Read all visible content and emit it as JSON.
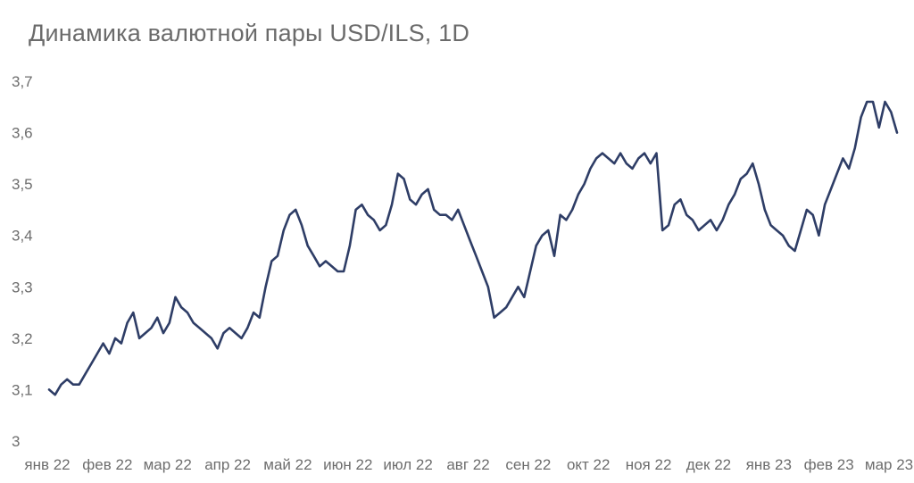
{
  "chart_data": {
    "type": "line",
    "title": "Динамика валютной пары USD/ILS, 1D",
    "xlabel": "",
    "ylabel": "",
    "ylim": [
      3.0,
      3.7
    ],
    "yticks": [
      "3",
      "3,1",
      "3,2",
      "3,3",
      "3,4",
      "3,5",
      "3,6",
      "3,7"
    ],
    "grid": false,
    "xticks": [
      "янв 22",
      "фев 22",
      "мар 22",
      "апр 22",
      "май 22",
      "июн 22",
      "июл 22",
      "авг 22",
      "сен 22",
      "окт 22",
      "ноя 22",
      "дек 22",
      "янв 23",
      "фев 23",
      "мар 23"
    ],
    "line_color": "#2e3d66",
    "series": [
      {
        "x": [
          0.0,
          0.1,
          0.2,
          0.3,
          0.4,
          0.5,
          0.6,
          0.7,
          0.8,
          0.9,
          1.0,
          1.1,
          1.2,
          1.3,
          1.4,
          1.5,
          1.6,
          1.7,
          1.8,
          1.9,
          2.0,
          2.1,
          2.2,
          2.3,
          2.4,
          2.5,
          2.6,
          2.7,
          2.8,
          2.9,
          3.0,
          3.1,
          3.2,
          3.3,
          3.4,
          3.5,
          3.6,
          3.7,
          3.8,
          3.9,
          4.0,
          4.1,
          4.2,
          4.3,
          4.4,
          4.5,
          4.6,
          4.7,
          4.8,
          4.9,
          5.0,
          5.1,
          5.2,
          5.3,
          5.4,
          5.5,
          5.6,
          5.7,
          5.8,
          5.9,
          6.0,
          6.1,
          6.2,
          6.3,
          6.4,
          6.5,
          6.6,
          6.7,
          6.8,
          6.9,
          7.0,
          7.1,
          7.2,
          7.3,
          7.4,
          7.5,
          7.6,
          7.7,
          7.8,
          7.9,
          8.0,
          8.1,
          8.2,
          8.3,
          8.4,
          8.5,
          8.6,
          8.7,
          8.8,
          8.9,
          9.0,
          9.1,
          9.2,
          9.3,
          9.4,
          9.5,
          9.6,
          9.7,
          9.8,
          9.9,
          10.0,
          10.1,
          10.2,
          10.3,
          10.4,
          10.5,
          10.6,
          10.7,
          10.8,
          10.9,
          11.0,
          11.1,
          11.2,
          11.3,
          11.4,
          11.5,
          11.6,
          11.7,
          11.8,
          11.9,
          12.0,
          12.1,
          12.2,
          12.3,
          12.4,
          12.5,
          12.6,
          12.7,
          12.8,
          12.9,
          13.0,
          13.1,
          13.2,
          13.3,
          13.4,
          13.5,
          13.6,
          13.7,
          13.8,
          13.9,
          14.0,
          14.1
        ],
        "values": [
          3.1,
          3.09,
          3.11,
          3.12,
          3.11,
          3.11,
          3.13,
          3.15,
          3.17,
          3.19,
          3.17,
          3.2,
          3.19,
          3.23,
          3.25,
          3.2,
          3.21,
          3.22,
          3.24,
          3.21,
          3.23,
          3.28,
          3.26,
          3.25,
          3.23,
          3.22,
          3.21,
          3.2,
          3.18,
          3.21,
          3.22,
          3.21,
          3.2,
          3.22,
          3.25,
          3.24,
          3.3,
          3.35,
          3.36,
          3.41,
          3.44,
          3.45,
          3.42,
          3.38,
          3.36,
          3.34,
          3.35,
          3.34,
          3.33,
          3.33,
          3.38,
          3.45,
          3.46,
          3.44,
          3.43,
          3.41,
          3.42,
          3.46,
          3.52,
          3.51,
          3.47,
          3.46,
          3.48,
          3.49,
          3.45,
          3.44,
          3.44,
          3.43,
          3.45,
          3.42,
          3.39,
          3.36,
          3.33,
          3.3,
          3.24,
          3.25,
          3.26,
          3.28,
          3.3,
          3.28,
          3.33,
          3.38,
          3.4,
          3.41,
          3.36,
          3.44,
          3.43,
          3.45,
          3.48,
          3.5,
          3.53,
          3.55,
          3.56,
          3.55,
          3.54,
          3.56,
          3.54,
          3.53,
          3.55,
          3.56,
          3.54,
          3.56,
          3.41,
          3.42,
          3.46,
          3.47,
          3.44,
          3.43,
          3.41,
          3.42,
          3.43,
          3.41,
          3.43,
          3.46,
          3.48,
          3.51,
          3.52,
          3.54,
          3.5,
          3.45,
          3.42,
          3.41,
          3.4,
          3.38,
          3.37,
          3.41,
          3.45,
          3.44,
          3.4,
          3.46,
          3.49,
          3.52,
          3.55,
          3.53,
          3.57,
          3.63,
          3.66,
          3.66,
          3.61,
          3.66,
          3.64,
          3.6
        ]
      }
    ]
  }
}
